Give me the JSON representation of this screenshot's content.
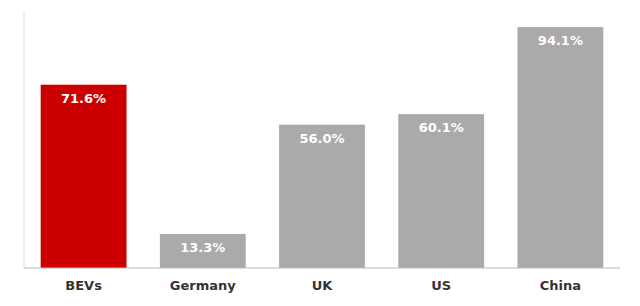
{
  "chart_data": {
    "type": "bar",
    "categories": [
      "BEVs",
      "Germany",
      "UK",
      "US",
      "China"
    ],
    "values": [
      71.6,
      13.3,
      56.0,
      60.1,
      94.1
    ],
    "value_labels": [
      "71.6%",
      "13.3%",
      "56.0%",
      "60.1%",
      "94.1%"
    ],
    "colors": [
      "#cc0000",
      "#aaaaaa",
      "#aaaaaa",
      "#aaaaaa",
      "#aaaaaa"
    ],
    "ylim": [
      0,
      100
    ],
    "data_labels": true,
    "tick_labels": "x"
  }
}
